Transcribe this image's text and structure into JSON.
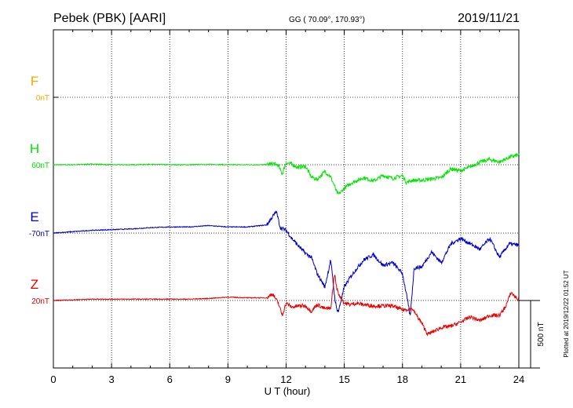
{
  "header": {
    "station": "Pebek (PBK)  [AARI]",
    "coords": "GG ( 70.09°, 170.93°)",
    "date": "2019/11/21"
  },
  "side_note": "Plotted at 2019/12/22 01:52 UT",
  "scale_bar": {
    "label": "500 nT",
    "value": 500
  },
  "colors": {
    "F": "#ffa500",
    "H": "#00e600",
    "E": "#0000cc",
    "Z": "#e60000",
    "axis": "#000000",
    "grid": "#000000"
  },
  "chart_data": {
    "type": "line",
    "xlabel": "U T (hour)",
    "xlim": [
      0,
      24
    ],
    "xticks": [
      "0",
      "3",
      "6",
      "9",
      "12",
      "15",
      "18",
      "21",
      "24"
    ],
    "grid": true,
    "legend": "left",
    "series": [
      {
        "name": "F",
        "baseline": "0nT",
        "values": []
      },
      {
        "name": "H",
        "baseline": "60nT",
        "x": [
          0,
          1,
          2,
          3,
          4,
          5,
          6,
          7,
          8,
          9,
          10,
          11,
          11.3,
          11.6,
          11.8,
          12,
          12.3,
          12.6,
          13,
          13.3,
          13.6,
          14,
          14.3,
          14.5,
          14.6,
          14.7,
          15,
          15.3,
          15.6,
          16,
          16.5,
          17,
          17.5,
          18,
          18.2,
          18.5,
          19,
          19.5,
          20,
          20.5,
          21,
          21.5,
          22,
          22.5,
          23,
          23.5,
          24
        ],
        "values": [
          0,
          0,
          5,
          0,
          0,
          3,
          0,
          0,
          3,
          0,
          0,
          0,
          10,
          -5,
          -70,
          15,
          5,
          -20,
          -10,
          -90,
          -110,
          -50,
          -90,
          -160,
          -200,
          -220,
          -175,
          -140,
          -120,
          -95,
          -120,
          -80,
          -100,
          -80,
          -130,
          -115,
          -115,
          -105,
          -95,
          -30,
          -45,
          -15,
          20,
          40,
          20,
          55,
          75
        ]
      },
      {
        "name": "E",
        "baseline": "-70nT",
        "x": [
          0,
          1,
          2,
          3,
          4,
          5,
          6,
          7,
          8,
          9,
          10,
          11,
          11.3,
          11.5,
          11.7,
          12,
          12.3,
          12.6,
          13,
          13.3,
          13.6,
          14,
          14.3,
          14.5,
          14.6,
          14.7,
          15,
          15.3,
          15.6,
          16,
          16.5,
          17,
          17.5,
          18,
          18.2,
          18.4,
          18.6,
          19,
          19.5,
          20,
          20.5,
          21,
          21.5,
          22,
          22.5,
          23,
          23.5,
          24
        ],
        "values": [
          0,
          10,
          20,
          25,
          30,
          40,
          45,
          45,
          55,
          45,
          45,
          60,
          120,
          160,
          40,
          20,
          -40,
          -90,
          -150,
          -180,
          -300,
          -400,
          -200,
          -470,
          -560,
          -580,
          -400,
          -330,
          -270,
          -200,
          -160,
          -240,
          -220,
          -300,
          -450,
          -620,
          -260,
          -250,
          -140,
          -220,
          -80,
          -40,
          -80,
          -120,
          -40,
          -180,
          -80,
          -90
        ]
      },
      {
        "name": "Z",
        "baseline": "20nT",
        "x": [
          0,
          1,
          2,
          3,
          4,
          5,
          6,
          7,
          8,
          9,
          10,
          11,
          11.3,
          11.6,
          11.8,
          12,
          12.3,
          12.6,
          13,
          13.3,
          13.6,
          14,
          14.3,
          14.5,
          14.6,
          14.7,
          15,
          15.3,
          15.6,
          16,
          16.5,
          17,
          17.5,
          18,
          18.5,
          19,
          19.3,
          19.6,
          20,
          20.5,
          21,
          21.5,
          22,
          22.5,
          23,
          23.3,
          23.6,
          24
        ],
        "values": [
          0,
          5,
          10,
          10,
          10,
          10,
          10,
          10,
          15,
          25,
          20,
          20,
          50,
          -20,
          -110,
          -20,
          -50,
          -40,
          -40,
          -80,
          -30,
          -60,
          -60,
          200,
          100,
          50,
          -20,
          -30,
          -20,
          -30,
          -40,
          -40,
          -40,
          -70,
          -60,
          -170,
          -250,
          -230,
          -200,
          -190,
          -160,
          -120,
          -150,
          -110,
          -110,
          -50,
          60,
          0
        ]
      }
    ]
  }
}
